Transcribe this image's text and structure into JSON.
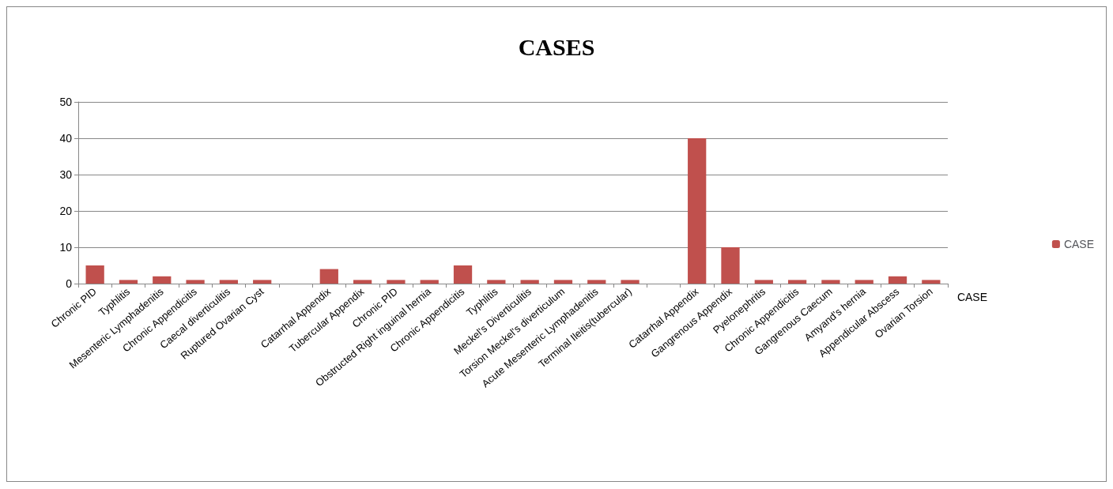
{
  "chart_data": {
    "type": "bar",
    "title": "CASES",
    "categories": [
      "Chronic PID",
      "Typhlitis",
      "Mesenteric Lymphadenitis",
      "Chronic Appendicitis",
      "Caecal diverticulitis",
      "Ruptured Ovarian Cyst",
      null,
      "Catarrhal Appendix",
      "Tubercular Appendix",
      "Chronic PID",
      "Obstructed Right inguinal hernia",
      "Chronic Appendicitis",
      "Typhlitis",
      "Meckel's Diverticulitis",
      "Torsion Meckel's diverticulum",
      "Acute Mesenteric Lymphadenitis",
      "Terminal Ileitis(tubercular)",
      null,
      "Catarrhal Appendix",
      "Gangrenous Appendix",
      "Pyelonephritis",
      "Chronic Appendicitis",
      "Gangrenous Caecum",
      "Amyand's hernia",
      "Appendicular Abscess",
      "Ovarian Torsion"
    ],
    "series": [
      {
        "name": "CASE",
        "color": "#c0504d",
        "values": [
          5,
          1,
          2,
          1,
          1,
          1,
          null,
          4,
          1,
          1,
          1,
          5,
          1,
          1,
          1,
          1,
          1,
          null,
          40,
          10,
          1,
          1,
          1,
          1,
          2,
          1
        ]
      }
    ],
    "ylim": [
      0,
      50
    ],
    "yticks": [
      0,
      10,
      20,
      30,
      40,
      50
    ],
    "grid": "y",
    "legend": "right"
  }
}
